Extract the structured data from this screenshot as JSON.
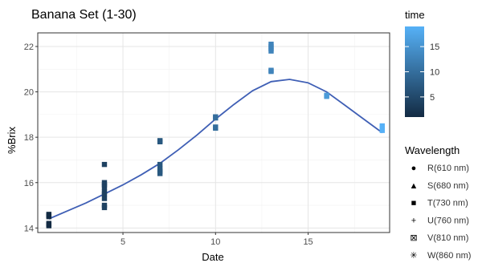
{
  "chart_data": {
    "type": "scatter",
    "title": "Banana Set (1-30)",
    "xlabel": "Date",
    "ylabel": "%Brix",
    "xlim": [
      0.4,
      19.4
    ],
    "ylim": [
      13.8,
      22.6
    ],
    "x_ticks": [
      5,
      10,
      15
    ],
    "y_ticks": [
      14,
      16,
      18,
      20,
      22
    ],
    "grid": true,
    "smooth_line": {
      "color": "#3f5fb5",
      "x": [
        1,
        2,
        3,
        4,
        5,
        6,
        7,
        8,
        9,
        10,
        11,
        12,
        13,
        14,
        15,
        16,
        17,
        18,
        19
      ],
      "y": [
        14.4,
        14.75,
        15.1,
        15.5,
        15.9,
        16.35,
        16.85,
        17.45,
        18.1,
        18.8,
        19.45,
        20.05,
        20.45,
        20.55,
        20.4,
        20.0,
        19.4,
        18.8,
        18.2
      ]
    },
    "points": [
      {
        "x": 1,
        "y": 14.1,
        "time": 1
      },
      {
        "x": 1,
        "y": 14.15,
        "time": 1
      },
      {
        "x": 1,
        "y": 14.2,
        "time": 1
      },
      {
        "x": 1,
        "y": 14.5,
        "time": 1
      },
      {
        "x": 1,
        "y": 14.55,
        "time": 1
      },
      {
        "x": 1,
        "y": 14.6,
        "time": 1
      },
      {
        "x": 4,
        "y": 14.9,
        "time": 4
      },
      {
        "x": 4,
        "y": 15.0,
        "time": 4
      },
      {
        "x": 4,
        "y": 15.3,
        "time": 4
      },
      {
        "x": 4,
        "y": 15.5,
        "time": 4
      },
      {
        "x": 4,
        "y": 15.6,
        "time": 4
      },
      {
        "x": 4,
        "y": 15.8,
        "time": 4
      },
      {
        "x": 4,
        "y": 15.9,
        "time": 4
      },
      {
        "x": 4,
        "y": 16.0,
        "time": 4
      },
      {
        "x": 4,
        "y": 16.8,
        "time": 4
      },
      {
        "x": 7,
        "y": 16.4,
        "time": 7
      },
      {
        "x": 7,
        "y": 16.5,
        "time": 7
      },
      {
        "x": 7,
        "y": 16.6,
        "time": 7
      },
      {
        "x": 7,
        "y": 16.8,
        "time": 7
      },
      {
        "x": 7,
        "y": 17.8,
        "time": 7
      },
      {
        "x": 7,
        "y": 17.85,
        "time": 7
      },
      {
        "x": 10,
        "y": 18.4,
        "time": 10
      },
      {
        "x": 10,
        "y": 18.45,
        "time": 10
      },
      {
        "x": 10,
        "y": 18.85,
        "time": 10
      },
      {
        "x": 10,
        "y": 18.9,
        "time": 10
      },
      {
        "x": 13,
        "y": 20.9,
        "time": 13
      },
      {
        "x": 13,
        "y": 20.95,
        "time": 13
      },
      {
        "x": 13,
        "y": 21.8,
        "time": 13
      },
      {
        "x": 13,
        "y": 21.9,
        "time": 13
      },
      {
        "x": 13,
        "y": 22.0,
        "time": 13
      },
      {
        "x": 13,
        "y": 22.1,
        "time": 13
      },
      {
        "x": 16,
        "y": 19.8,
        "time": 16
      },
      {
        "x": 16,
        "y": 19.85,
        "time": 16
      },
      {
        "x": 19,
        "y": 18.3,
        "time": 19
      },
      {
        "x": 19,
        "y": 18.4,
        "time": 19
      },
      {
        "x": 19,
        "y": 18.5,
        "time": 19
      }
    ],
    "color_legend": {
      "title": "time",
      "ticks": [
        5,
        10,
        15
      ],
      "range": [
        1,
        19
      ],
      "low_color": "#132b43",
      "high_color": "#56b1f7"
    },
    "shape_legend": {
      "title": "Wavelength",
      "items": [
        {
          "label": "R(610 nm)",
          "symbol": "●"
        },
        {
          "label": "S(680 nm)",
          "symbol": "▲"
        },
        {
          "label": "T(730 nm)",
          "symbol": "■"
        },
        {
          "label": "U(760 nm)",
          "symbol": "+"
        },
        {
          "label": "V(810 nm)",
          "symbol": "⊠"
        },
        {
          "label": "W(860 nm)",
          "symbol": "✳"
        }
      ]
    },
    "legend_position": "right"
  }
}
